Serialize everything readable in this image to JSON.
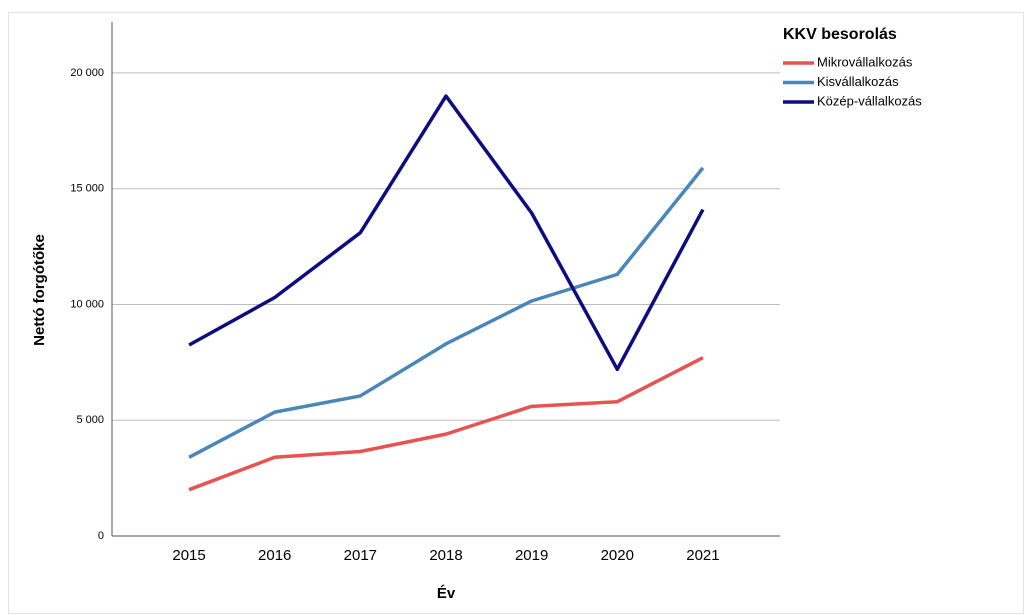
{
  "chart_data": {
    "type": "line",
    "x_label": "Év",
    "y_label": "Nettó forgótőke",
    "legend_title": "KKV besorolás",
    "legend_position": "right",
    "categories": [
      "2015",
      "2016",
      "2017",
      "2018",
      "2019",
      "2020",
      "2021"
    ],
    "series": [
      {
        "name": "Mikrovállalkozás",
        "color": "#e8534f",
        "values": [
          2000,
          3400,
          3650,
          4400,
          5600,
          5800,
          7700
        ]
      },
      {
        "name": "Kisvállalkozás",
        "color": "#4a86b8",
        "values": [
          3400,
          5350,
          6050,
          8300,
          10150,
          11300,
          15900
        ]
      },
      {
        "name": "Közép-vállalkozás",
        "color": "#0d0d80",
        "values": [
          8250,
          10300,
          13100,
          19000,
          13950,
          7200,
          14100
        ]
      }
    ],
    "ylim": [
      0,
      22200
    ],
    "yticks": [
      0,
      {
        "value": 5000,
        "label": "5 000"
      },
      {
        "value": 10000,
        "label": "10 000"
      },
      {
        "value": 15000,
        "label": "15 000"
      },
      {
        "value": 20000,
        "label": "20 000"
      }
    ],
    "grid": true
  }
}
